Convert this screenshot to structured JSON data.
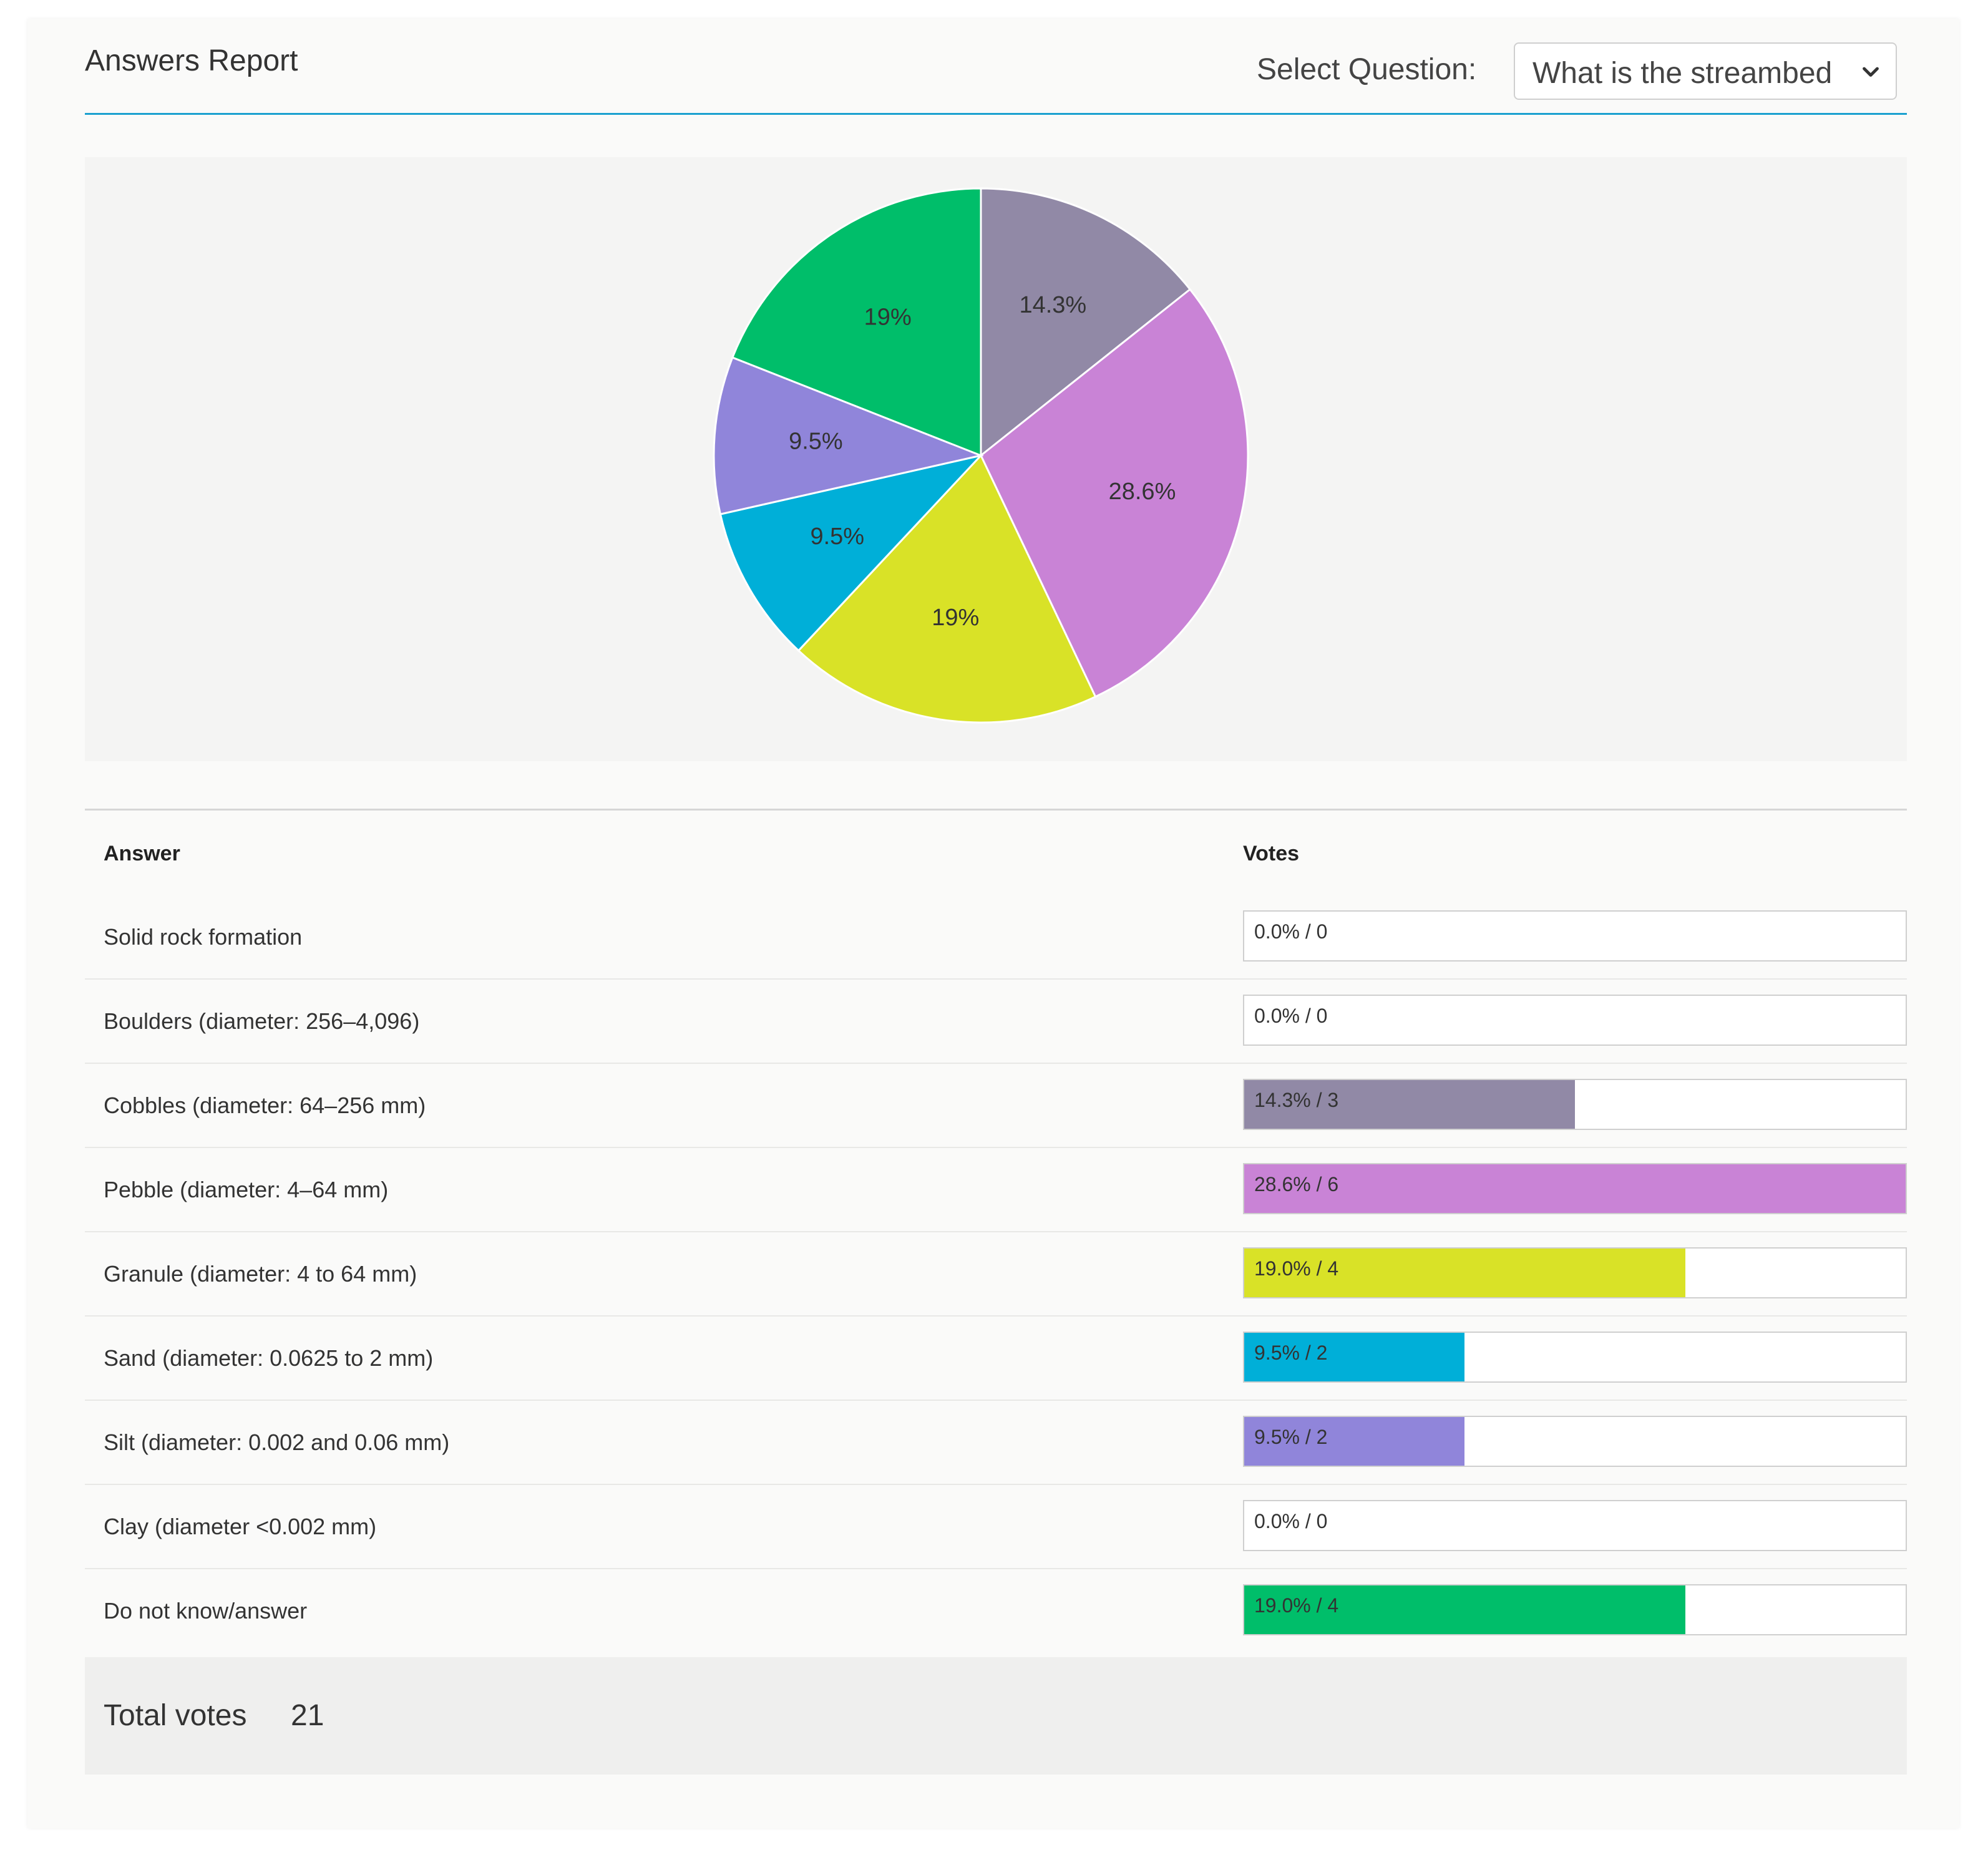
{
  "header": {
    "title": "Answers Report",
    "select_label": "Select Question:",
    "select_value": "What is the streambed",
    "select_icon": "chevron-down-icon"
  },
  "table": {
    "col_answer": "Answer",
    "col_votes": "Votes",
    "rows": [
      {
        "answer": "Solid rock formation",
        "label": "0.0% / 0",
        "fraction": 0.0,
        "color": "#ffffff"
      },
      {
        "answer": "Boulders (diameter: 256–4,096)",
        "label": "0.0% / 0",
        "fraction": 0.0,
        "color": "#ffffff"
      },
      {
        "answer": "Cobbles (diameter: 64–256 mm)",
        "label": "14.3% / 3",
        "fraction": 0.5,
        "color": "#9189a6"
      },
      {
        "answer": "Pebble (diameter: 4–64 mm)",
        "label": "28.6% / 6",
        "fraction": 1.0,
        "color": "#c983d6"
      },
      {
        "answer": "Granule (diameter: 4 to 64 mm)",
        "label": "19.0% / 4",
        "fraction": 0.6667,
        "color": "#d9e227"
      },
      {
        "answer": "Sand (diameter: 0.0625 to 2 mm)",
        "label": "9.5% / 2",
        "fraction": 0.3333,
        "color": "#00afd8"
      },
      {
        "answer": "Silt (diameter: 0.002 and 0.06 mm)",
        "label": "9.5% / 2",
        "fraction": 0.3333,
        "color": "#9085da"
      },
      {
        "answer": "Clay (diameter <0.002 mm)",
        "label": "0.0% / 0",
        "fraction": 0.0,
        "color": "#ffffff"
      },
      {
        "answer": "Do not know/answer",
        "label": "19.0% / 4",
        "fraction": 0.6667,
        "color": "#00be6a"
      }
    ]
  },
  "footer": {
    "total_label": "Total votes",
    "total_value": "21"
  },
  "chart_data": {
    "type": "pie",
    "slices": [
      {
        "value": 14.3,
        "label": "14.3%",
        "color": "#9189a6"
      },
      {
        "value": 28.6,
        "label": "28.6%",
        "color": "#c983d6"
      },
      {
        "value": 19.0,
        "label": "19%",
        "color": "#d9e227"
      },
      {
        "value": 9.5,
        "label": "9.5%",
        "color": "#00afd8"
      },
      {
        "value": 9.5,
        "label": "9.5%",
        "color": "#9085da"
      },
      {
        "value": 19.0,
        "label": "19%",
        "color": "#00be6a"
      }
    ],
    "start": "12 o'clock, clockwise"
  }
}
